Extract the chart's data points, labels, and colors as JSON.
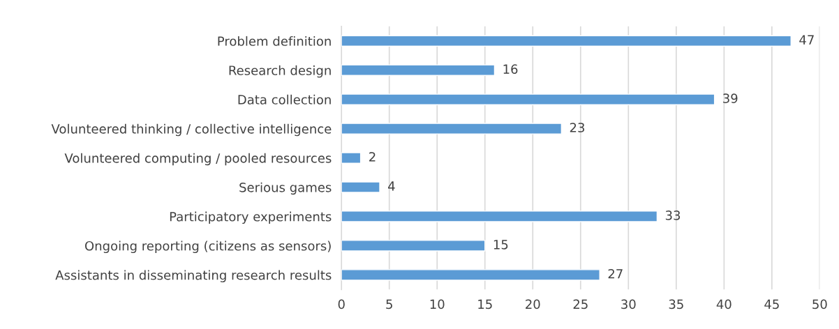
{
  "chart_data": {
    "type": "bar",
    "orientation": "horizontal",
    "categories": [
      "Problem definition",
      "Research design",
      "Data collection",
      "Volunteered thinking / collective intelligence",
      "Volunteered computing / pooled resources",
      "Serious games",
      "Participatory experiments",
      "Ongoing reporting (citizens as sensors)",
      "Assistants in disseminating research results"
    ],
    "values": [
      47,
      16,
      39,
      23,
      2,
      4,
      33,
      15,
      27
    ],
    "color": "#5b9bd5",
    "xlim": [
      0,
      50
    ],
    "xticks": [
      0,
      5,
      10,
      15,
      20,
      25,
      30,
      35,
      40,
      45,
      50
    ],
    "grid": "x",
    "data_labels": true,
    "legend": false
  }
}
